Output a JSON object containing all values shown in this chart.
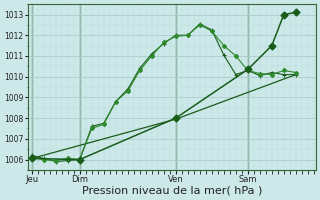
{
  "background_color": "#cce8e8",
  "plot_bg_color": "#cce8e8",
  "grid_color_major": "#aacccc",
  "grid_color_minor": "#bbdddd",
  "line_color_dark": "#1a5c1a",
  "line_color_med": "#2d8b2d",
  "ylim": [
    1005.5,
    1013.5
  ],
  "yticks": [
    1006,
    1007,
    1008,
    1009,
    1010,
    1011,
    1012,
    1013
  ],
  "xlabel": "Pression niveau de la mer( hPa )",
  "xlabel_fontsize": 8,
  "xtick_labels": [
    "Jeu",
    "Dim",
    "Ven",
    "Sam"
  ],
  "xtick_positions": [
    0,
    24,
    72,
    108
  ],
  "vline_positions": [
    0,
    24,
    72,
    108
  ],
  "xlim": [
    -2,
    142
  ],
  "series1_x": [
    0,
    6,
    12,
    18,
    24,
    30,
    36,
    42,
    48,
    54,
    60,
    66,
    72,
    78,
    84,
    90,
    96,
    102,
    108,
    114,
    120,
    126,
    132
  ],
  "series1_y": [
    1006.1,
    1006.0,
    1005.95,
    1006.05,
    1006.0,
    1007.5,
    1007.7,
    1008.8,
    1009.3,
    1010.3,
    1011.0,
    1011.65,
    1011.95,
    1012.0,
    1012.5,
    1012.2,
    1011.5,
    1011.0,
    1010.3,
    1010.15,
    1010.1,
    1010.3,
    1010.2
  ],
  "series2_x": [
    0,
    6,
    12,
    18,
    24,
    30,
    36,
    42,
    48,
    54,
    60,
    66,
    72,
    78,
    84,
    90,
    96,
    102,
    108,
    114,
    120,
    126,
    132
  ],
  "series2_y": [
    1006.2,
    1006.05,
    1005.9,
    1005.95,
    1006.0,
    1007.6,
    1007.75,
    1008.8,
    1009.4,
    1010.4,
    1011.1,
    1011.6,
    1012.0,
    1012.0,
    1012.55,
    1012.25,
    1011.05,
    1010.1,
    1010.3,
    1010.05,
    1010.2,
    1010.1,
    1010.1
  ],
  "series3_x": [
    0,
    24,
    72,
    108,
    120,
    126,
    132
  ],
  "series3_y": [
    1006.05,
    1006.0,
    1008.0,
    1010.35,
    1011.5,
    1013.0,
    1013.1
  ],
  "series4_x": [
    0,
    72,
    132
  ],
  "series4_y": [
    1006.05,
    1007.95,
    1010.1
  ]
}
